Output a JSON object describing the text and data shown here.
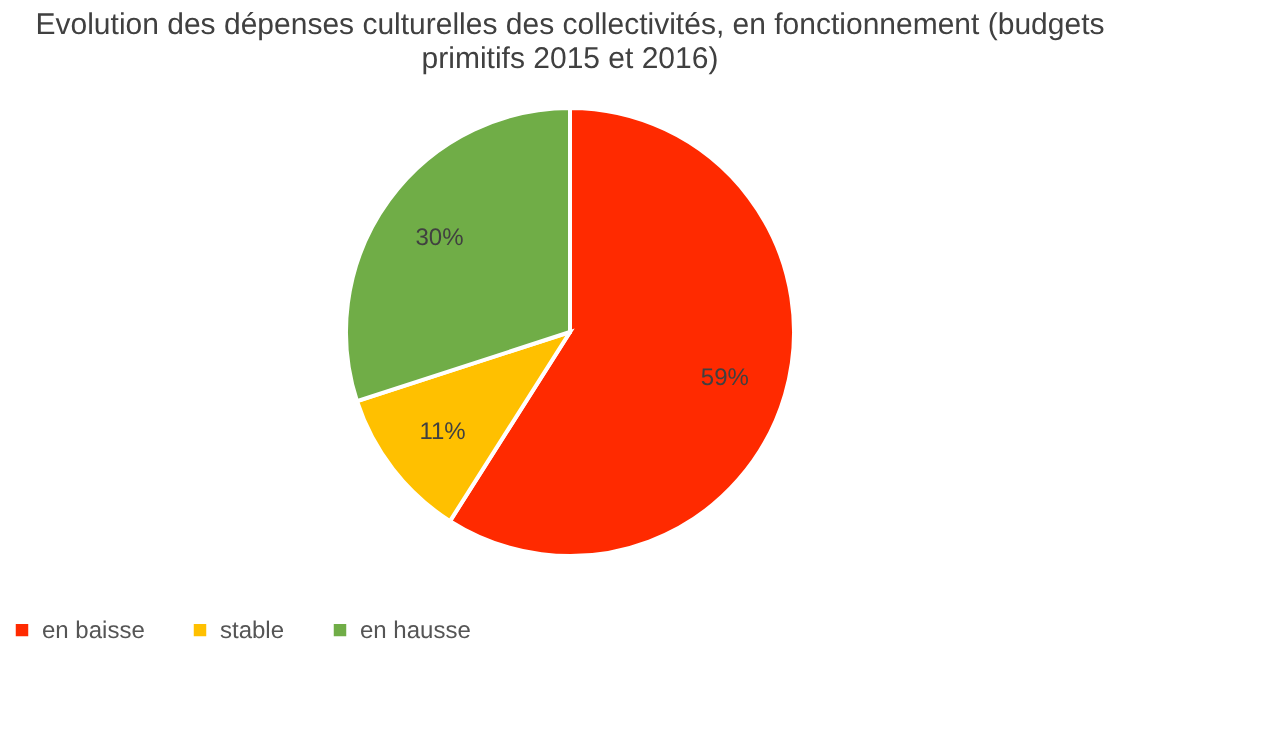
{
  "chart_data": {
    "type": "pie",
    "title": "Evolution des dépenses culturelles des collectivités, en fonctionnement (budgets primitifs 2015 et 2016)",
    "categories": [
      "en baisse",
      "stable",
      "en hausse"
    ],
    "values": [
      59,
      11,
      30
    ],
    "colors": [
      "#ff2a00",
      "#ffc000",
      "#70ad47"
    ],
    "value_labels": [
      "59%",
      "11%",
      "30%"
    ],
    "legend": "bottom"
  }
}
